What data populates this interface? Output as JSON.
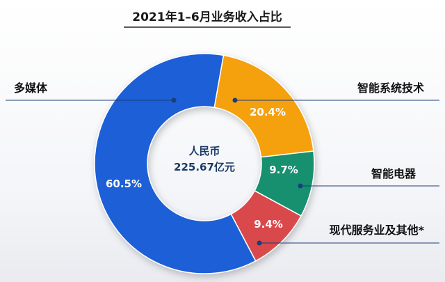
{
  "chart_data": {
    "type": "pie",
    "title": "2021年1–6月业务收入占比",
    "center_label": [
      "人民币",
      "225.67亿元"
    ],
    "slices": [
      {
        "category": "智能系统技术",
        "value": 20.4,
        "label": "20.4%",
        "color": "#f5a10f"
      },
      {
        "category": "智能电器",
        "value": 9.7,
        "label": "9.7%",
        "color": "#16906e"
      },
      {
        "category": "现代服务业及其他*",
        "value": 9.4,
        "label": "9.4%",
        "color": "#d9494b"
      },
      {
        "category": "多媒体",
        "value": 60.5,
        "label": "60.5%",
        "color": "#1f5fd6"
      }
    ],
    "donut": true,
    "start_angle_deg": 10
  },
  "colors": {
    "leader_line": "#1c3d7a",
    "title_underline": "#222222"
  }
}
